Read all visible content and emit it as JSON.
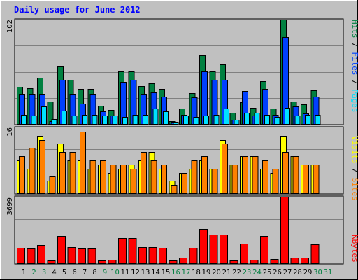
{
  "chart_data": {
    "type": "bar",
    "title": "Daily usage for June 2012",
    "categories": [
      "1",
      "2",
      "3",
      "4",
      "5",
      "6",
      "7",
      "8",
      "9",
      "10",
      "11",
      "12",
      "13",
      "14",
      "15",
      "16",
      "17",
      "18",
      "19",
      "20",
      "21",
      "22",
      "23",
      "24",
      "25",
      "26",
      "27",
      "28",
      "29",
      "30",
      "31"
    ],
    "weekend_days": [
      "2",
      "3",
      "9",
      "10",
      "16",
      "17",
      "23",
      "24",
      "30",
      "31"
    ],
    "colors": {
      "hits": "#008040",
      "files": "#0040ff",
      "pages": "#00e0ff",
      "visits": "#ffff00",
      "sites": "#ff8000",
      "kbytes": "#ff0000",
      "weekday_label": "#000000",
      "weekend_label": "#008040"
    },
    "panels": [
      {
        "ymax_label": "102",
        "ylim": [
          0,
          102
        ],
        "legend": [
          {
            "text": "Hits",
            "color": "#008040"
          },
          {
            "text": " / ",
            "color": "#000000"
          },
          {
            "text": "Files",
            "color": "#0040ff"
          },
          {
            "text": " / ",
            "color": "#000000"
          },
          {
            "text": "Pages",
            "color": "#00e0ff"
          }
        ],
        "series": [
          {
            "key": "hits",
            "values": [
              36,
              35,
              45,
              22,
              56,
              43,
              34,
              34,
              18,
              14,
              51,
              51,
              37,
              40,
              34,
              3,
              15,
              30,
              67,
              51,
              58,
              11,
              21,
              16,
              42,
              15,
              102,
              22,
              19,
              33
            ]
          },
          {
            "key": "files",
            "values": [
              29,
              29,
              29,
              3,
              43,
              29,
              20,
              29,
              12,
              8,
              41,
              43,
              29,
              31,
              27,
              2,
              9,
              26,
              51,
              43,
              43,
              4,
              32,
              8,
              34,
              9,
              85,
              17,
              10,
              27
            ]
          },
          {
            "key": "pages",
            "values": [
              9,
              8,
              17,
              5,
              13,
              8,
              9,
              9,
              8,
              8,
              7,
              9,
              9,
              15,
              12,
              2,
              8,
              7,
              8,
              9,
              15,
              4,
              11,
              11,
              9,
              7,
              16,
              8,
              9,
              9
            ]
          }
        ]
      },
      {
        "ymax_label": "16",
        "ylim": [
          0,
          16
        ],
        "legend": [
          {
            "text": "Visits",
            "color": "#ffff00"
          },
          {
            "text": " / ",
            "color": "#000000"
          },
          {
            "text": "Sites",
            "color": "#ff8000"
          }
        ],
        "series": [
          {
            "key": "visits",
            "values": [
              8,
              6,
              14,
              3,
              12,
              8,
              8,
              6,
              7,
              5,
              6,
              7,
              8,
              10,
              6,
              3,
              5,
              6,
              8,
              6,
              13,
              7,
              9,
              9,
              6,
              5,
              14,
              9,
              7,
              7
            ]
          },
          {
            "key": "sites",
            "values": [
              9,
              11,
              13,
              4,
              10,
              10,
              15,
              8,
              8,
              7,
              7,
              6,
              10,
              8,
              7,
              2,
              5,
              8,
              9,
              6,
              12,
              7,
              9,
              9,
              8,
              6,
              10,
              9,
              7,
              7
            ]
          }
        ]
      },
      {
        "ymax_label": "3699",
        "ylim": [
          0,
          3699
        ],
        "legend": [
          {
            "text": "KBytes",
            "color": "#ff0000"
          }
        ],
        "series": [
          {
            "key": "kbytes",
            "values": [
              850,
              800,
              1000,
              150,
              1500,
              900,
              800,
              800,
              150,
              200,
              1400,
              1400,
              900,
              900,
              850,
              150,
              300,
              850,
              1900,
              1600,
              1600,
              150,
              1100,
              200,
              1500,
              250,
              3699,
              300,
              320,
              1050
            ]
          }
        ]
      }
    ]
  }
}
